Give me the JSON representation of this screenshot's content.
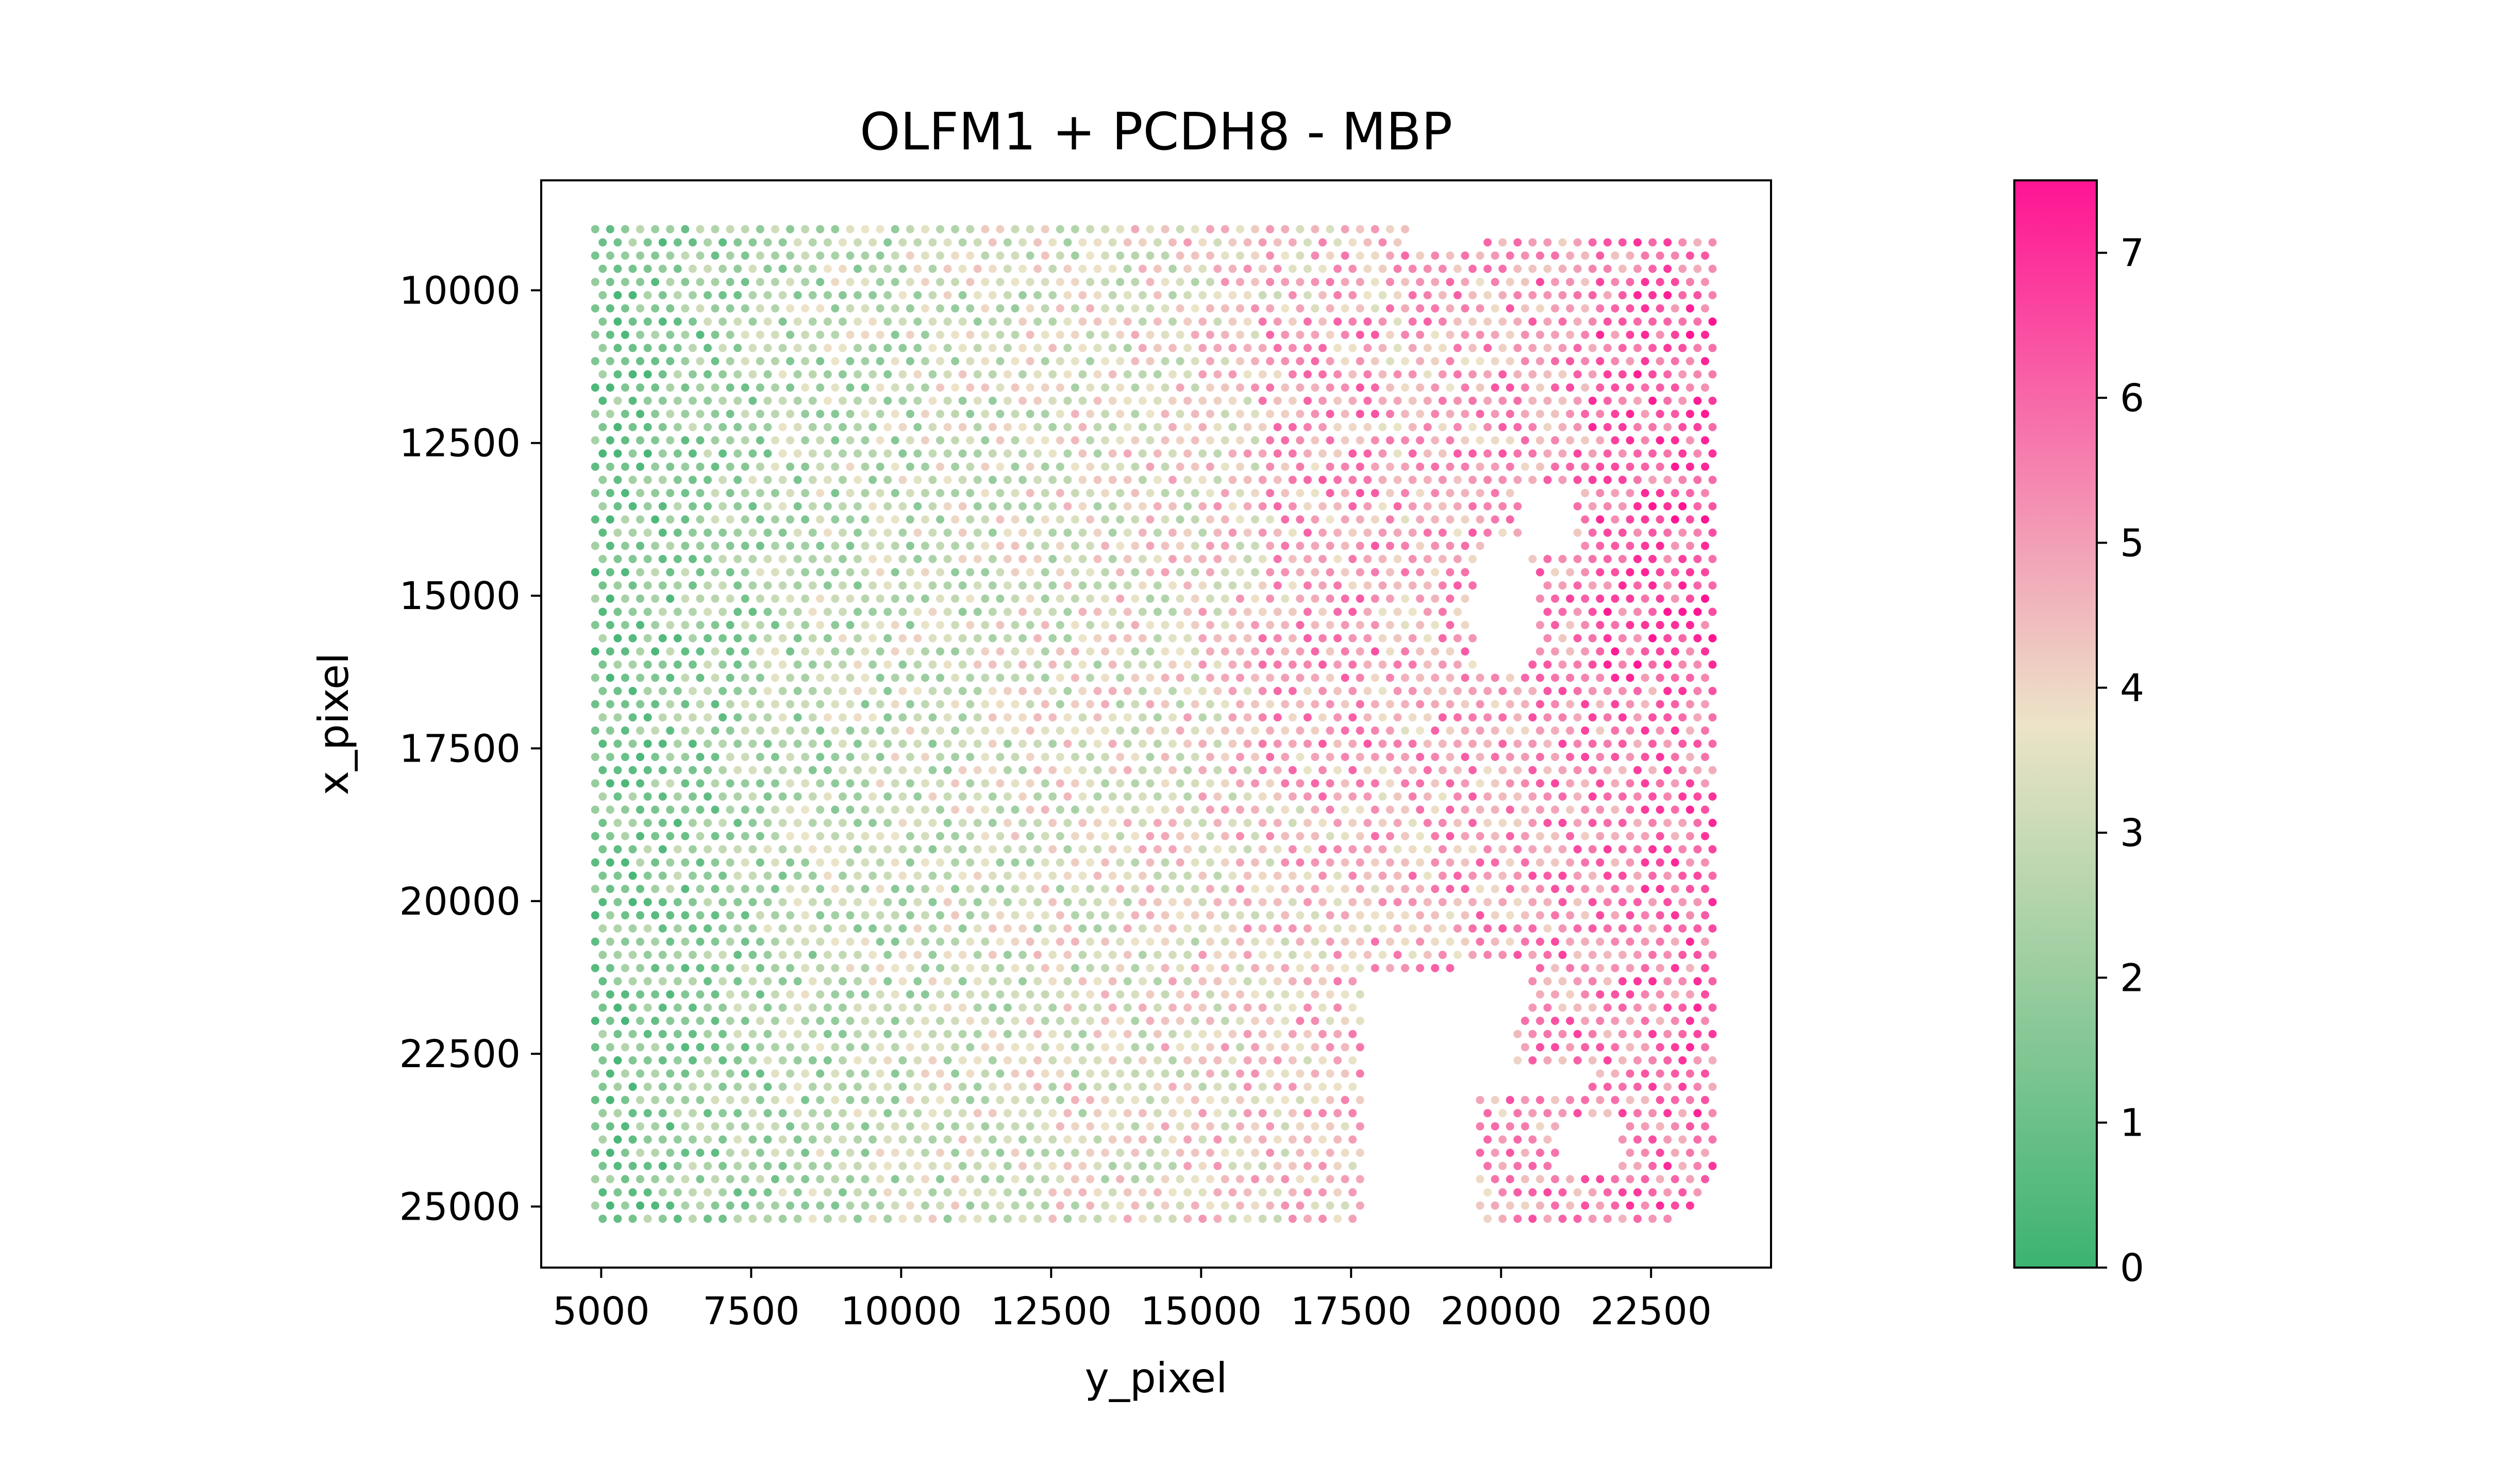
{
  "chart_data": {
    "type": "scatter",
    "title": "OLFM1 + PCDH8 - MBP",
    "xlabel": "y_pixel",
    "ylabel": "x_pixel",
    "xlim": [
      4000,
      24500
    ],
    "ylim": [
      26000,
      8200
    ],
    "y_inverted": true,
    "xticks": [
      5000,
      7500,
      10000,
      12500,
      15000,
      17500,
      20000,
      22500
    ],
    "xtick_labels": [
      "5000",
      "7500",
      "10000",
      "12500",
      "15000",
      "17500",
      "20000",
      "22500"
    ],
    "yticks": [
      10000,
      12500,
      15000,
      17500,
      20000,
      22500,
      25000
    ],
    "ytick_labels": [
      "10000",
      "12500",
      "15000",
      "17500",
      "20000",
      "22500",
      "25000"
    ],
    "grid": false,
    "spot_grid": {
      "x_range": [
        4900,
        23600
      ],
      "y_range": [
        9000,
        25200
      ],
      "x_step": 250,
      "y_step": 216
    },
    "value_trend": "low values (green, ~0.5–2) concentrated at y_pixel 5000–8000; mid values (~3–4) across the center; high values (pink, ~5–7.5) toward y_pixel 15000–23500",
    "colorbar": {
      "min": 0,
      "max": 7.5,
      "ticks": [
        0,
        1,
        2,
        3,
        4,
        5,
        6,
        7
      ],
      "tick_labels": [
        "0",
        "1",
        "2",
        "3",
        "4",
        "5",
        "6",
        "7"
      ],
      "colors": [
        "#3cb371",
        "#ece4c8",
        "#ff1493"
      ]
    }
  }
}
